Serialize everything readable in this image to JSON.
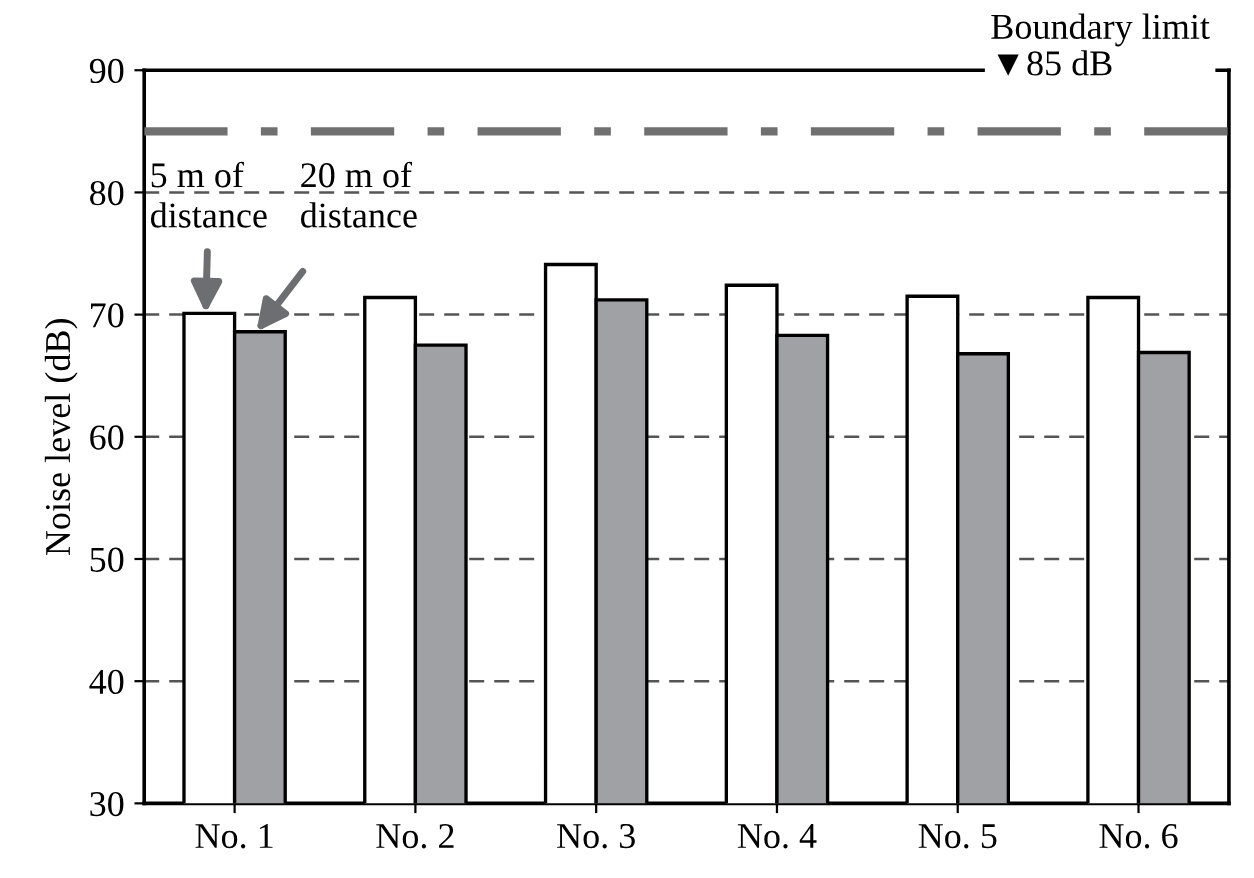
{
  "chart_data": {
    "type": "bar",
    "ylabel": "Noise level (dB)",
    "categories": [
      "No. 1",
      "No. 2",
      "No. 3",
      "No. 4",
      "No. 5",
      "No. 6"
    ],
    "series": [
      {
        "name": "5 m of\ndistance",
        "color": "#ffffff",
        "values": [
          70.1,
          71.4,
          74.1,
          72.4,
          71.5,
          71.4
        ]
      },
      {
        "name": "20 m of\ndistance",
        "color": "#a0a1a5",
        "values": [
          68.6,
          67.5,
          71.2,
          68.3,
          66.8,
          66.9
        ]
      }
    ],
    "ylim": [
      30,
      90
    ],
    "yticks": [
      30,
      40,
      50,
      60,
      70,
      80,
      90
    ],
    "grid": "y",
    "legend": false,
    "ref_lines": [
      {
        "axis": "y",
        "value": 85,
        "label": "Boundary limit\n▼85 dB",
        "color": "#707070",
        "line_style": "dashdot"
      }
    ]
  }
}
